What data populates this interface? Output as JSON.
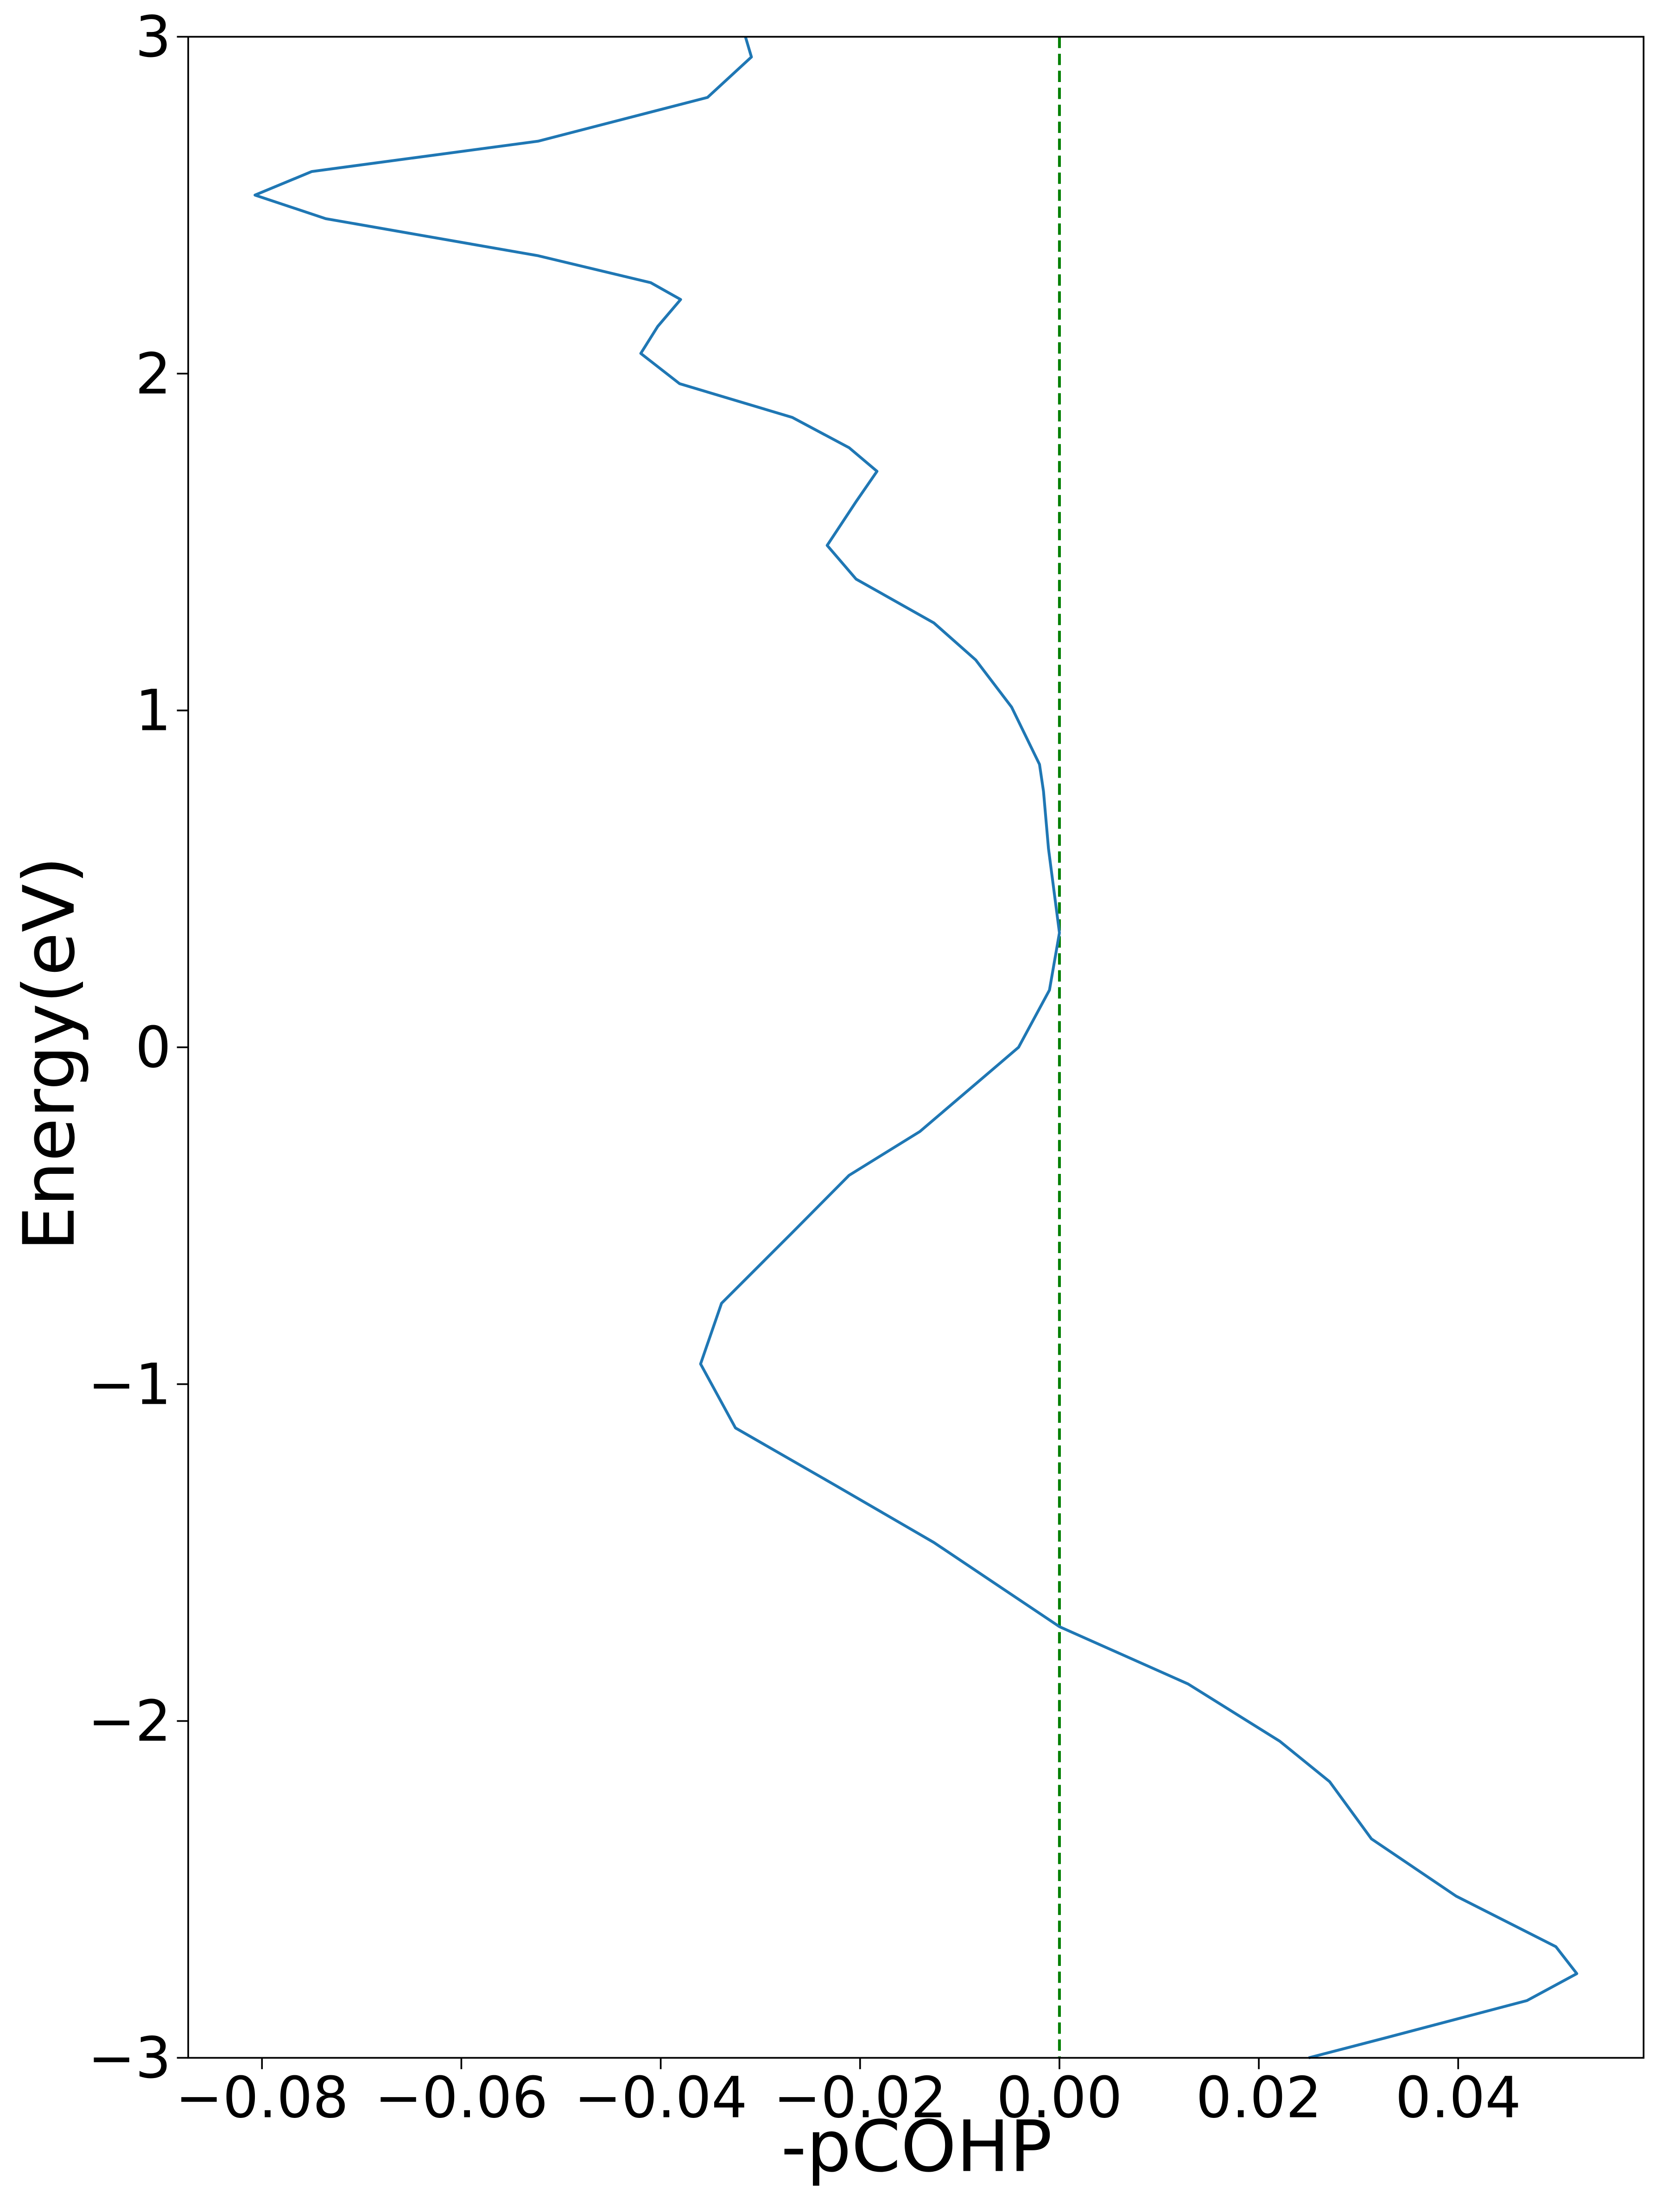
{
  "chart_data": {
    "type": "line",
    "xlabel": "-pCOHP",
    "ylabel": "Energy(eV)",
    "xlim": [
      -0.0874,
      0.0586
    ],
    "ylim": [
      -3,
      3
    ],
    "xticks": [
      {
        "value": -0.08,
        "label": "−0.08"
      },
      {
        "value": -0.06,
        "label": "−0.06"
      },
      {
        "value": -0.04,
        "label": "−0.04"
      },
      {
        "value": -0.02,
        "label": "−0.02"
      },
      {
        "value": 0,
        "label": "0.00"
      },
      0.02,
      0.04
    ],
    "yticks": [
      {
        "value": -3,
        "label": "−3"
      },
      {
        "value": -2,
        "label": "−2"
      },
      {
        "value": -1,
        "label": "−1"
      },
      0,
      1,
      2,
      3
    ],
    "vline": {
      "x": 0,
      "color": "#008000",
      "style": "dashed"
    },
    "series": [
      {
        "color": "#1f77b4",
        "energies": [
          3.0,
          2.94,
          2.82,
          2.69,
          2.6,
          2.53,
          2.46,
          2.35,
          2.27,
          2.22,
          2.14,
          2.06,
          1.97,
          1.87,
          1.78,
          1.71,
          1.62,
          1.49,
          1.39,
          1.26,
          1.15,
          1.01,
          0.84,
          0.76,
          0.59,
          0.34,
          0.17,
          0.0,
          -0.25,
          -0.38,
          -0.55,
          -0.76,
          -0.94,
          -1.13,
          -1.3,
          -1.47,
          -1.72,
          -1.89,
          -2.06,
          -2.18,
          -2.35,
          -2.52,
          -2.67,
          -2.75,
          -2.83,
          -2.94,
          -3.0
        ],
        "values": [
          -0.0315,
          -0.0309,
          -0.0353,
          -0.0523,
          -0.075,
          -0.0807,
          -0.0736,
          -0.0523,
          -0.041,
          -0.038,
          -0.0403,
          -0.042,
          -0.0381,
          -0.0268,
          -0.0211,
          -0.0183,
          -0.0204,
          -0.0233,
          -0.0204,
          -0.0126,
          -0.0084,
          -0.0048,
          -0.002,
          -0.0016,
          -0.0011,
          0,
          -0.001,
          -0.0041,
          -0.014,
          -0.0211,
          -0.0268,
          -0.0339,
          -0.036,
          -0.0325,
          -0.0225,
          -0.0126,
          0,
          0.0129,
          0.0221,
          0.0271,
          0.0313,
          0.0398,
          0.0498,
          0.0519,
          0.0469,
          0.0328,
          0.025
        ]
      }
    ]
  }
}
